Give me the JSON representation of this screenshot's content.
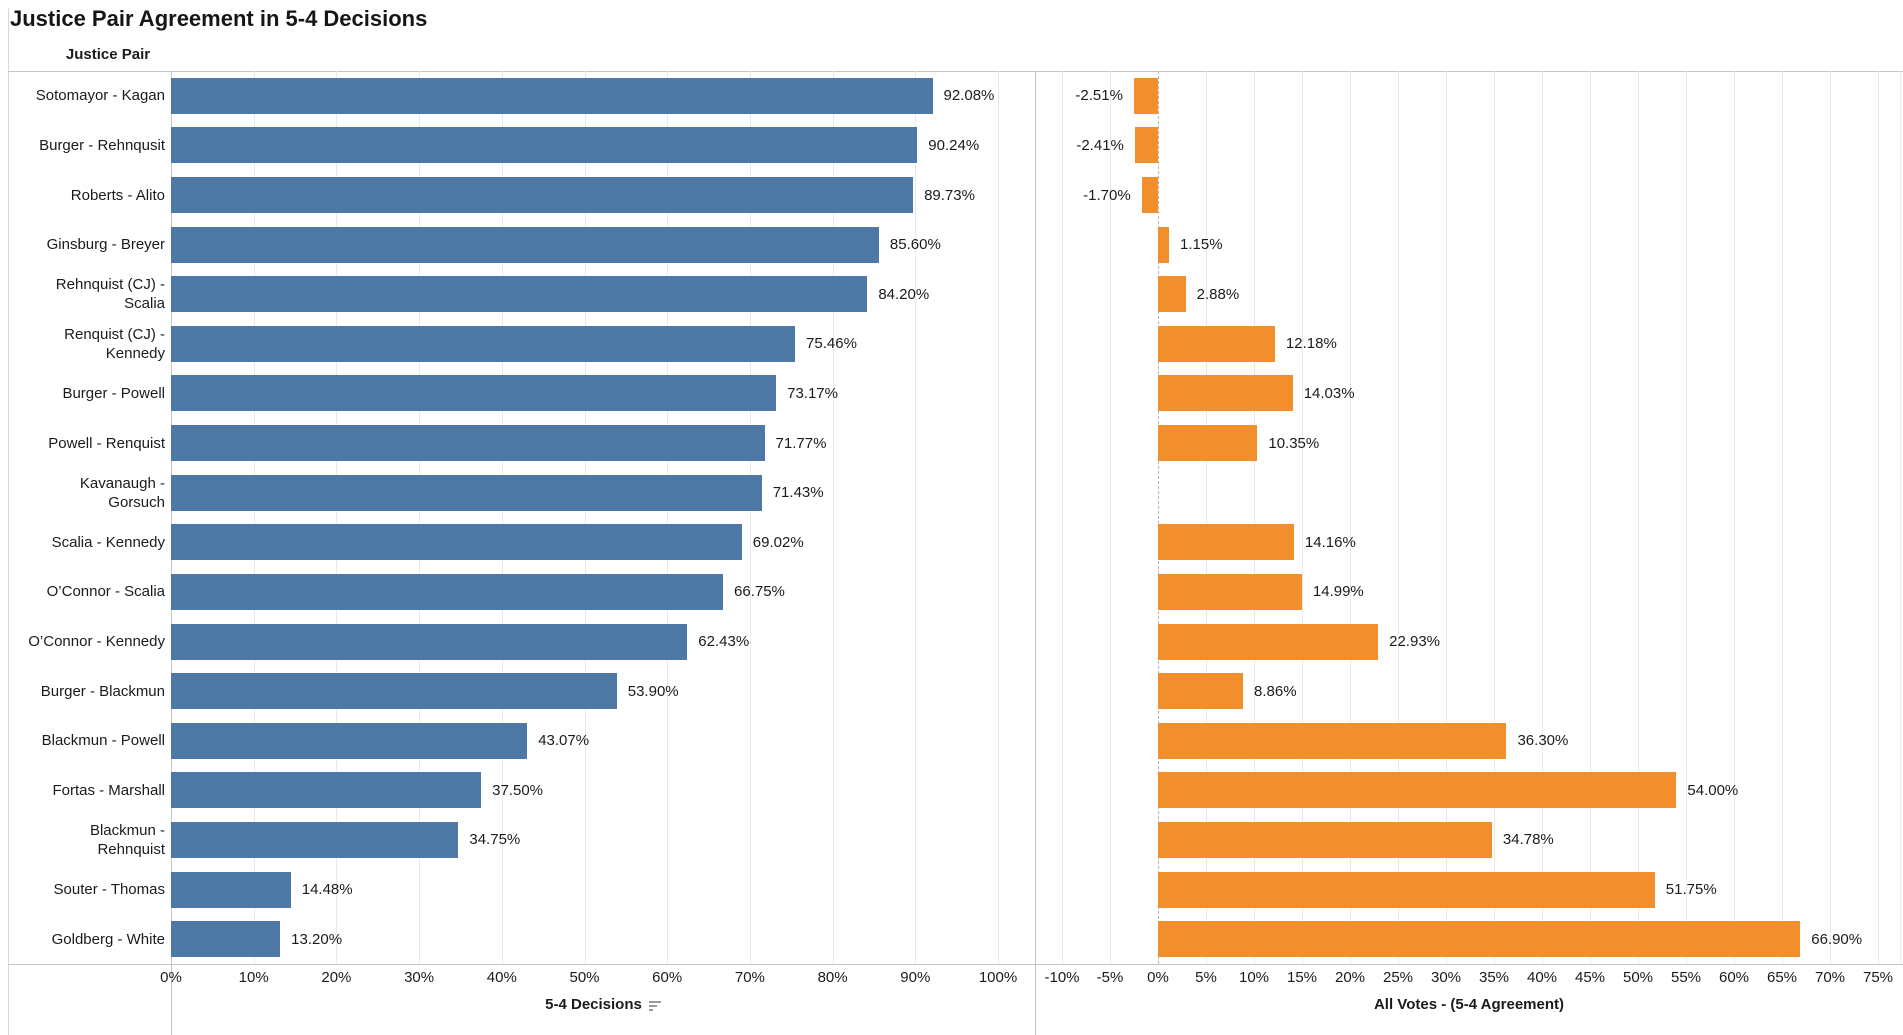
{
  "title": "Justice Pair Agreement in 5-4 Decisions",
  "chart_data": {
    "type": "bar",
    "orientation": "horizontal",
    "grid": true,
    "legend": "none",
    "row_header": "Justice Pair",
    "categories": [
      "Sotomayor - Kagan",
      "Burger - Rehnqusit",
      "Roberts - Alito",
      "Ginsburg - Breyer",
      "Rehnquist (CJ) -\nScalia",
      "Renquist (CJ) -\nKennedy",
      "Burger - Powell",
      "Powell - Renquist",
      "Kavanaugh -\nGorsuch",
      "Scalia - Kennedy",
      "O’Connor - Scalia",
      "O’Connor - Kennedy",
      "Burger - Blackmun",
      "Blackmun - Powell",
      "Fortas - Marshall",
      "Blackmun -\nRehnquist",
      "Souter - Thomas",
      "Goldberg - White"
    ],
    "panels": [
      {
        "name": "5-4 Decisions",
        "axis_title": "5-4 Decisions",
        "sort_indicator": true,
        "color": "#4e79a7",
        "axis_min": 0,
        "axis_max": 100,
        "tick_step": 10,
        "tick_labels": [
          "0%",
          "10%",
          "20%",
          "30%",
          "40%",
          "50%",
          "60%",
          "70%",
          "80%",
          "90%",
          "100%"
        ],
        "values": [
          92.08,
          90.24,
          89.73,
          85.6,
          84.2,
          75.46,
          73.17,
          71.77,
          71.43,
          69.02,
          66.75,
          62.43,
          53.9,
          43.07,
          37.5,
          34.75,
          14.48,
          13.2
        ],
        "value_labels": [
          "92.08%",
          "90.24%",
          "89.73%",
          "85.60%",
          "84.20%",
          "75.46%",
          "73.17%",
          "71.77%",
          "71.43%",
          "69.02%",
          "66.75%",
          "62.43%",
          "53.90%",
          "43.07%",
          "37.50%",
          "34.75%",
          "14.48%",
          "13.20%"
        ]
      },
      {
        "name": "All Votes - (5-4 Agreement)",
        "axis_title": "All Votes - (5-4 Agreement)",
        "sort_indicator": false,
        "color": "#f28e2b",
        "axis_min": -10,
        "axis_max": 75,
        "tick_step": 5,
        "tick_labels": [
          "-10%",
          "-5%",
          "0%",
          "5%",
          "10%",
          "15%",
          "20%",
          "25%",
          "30%",
          "35%",
          "40%",
          "45%",
          "50%",
          "55%",
          "60%",
          "65%",
          "70%",
          "75%"
        ],
        "values": [
          -2.51,
          -2.41,
          -1.7,
          1.15,
          2.88,
          12.18,
          14.03,
          10.35,
          null,
          14.16,
          14.99,
          22.93,
          8.86,
          36.3,
          54.0,
          34.78,
          51.75,
          66.9
        ],
        "value_labels": [
          "-2.51%",
          "-2.41%",
          "-1.70%",
          "1.15%",
          "2.88%",
          "12.18%",
          "14.03%",
          "10.35%",
          null,
          "14.16%",
          "14.99%",
          "22.93%",
          "8.86%",
          "36.30%",
          "54.00%",
          "34.78%",
          "51.75%",
          "66.90%"
        ]
      }
    ]
  }
}
